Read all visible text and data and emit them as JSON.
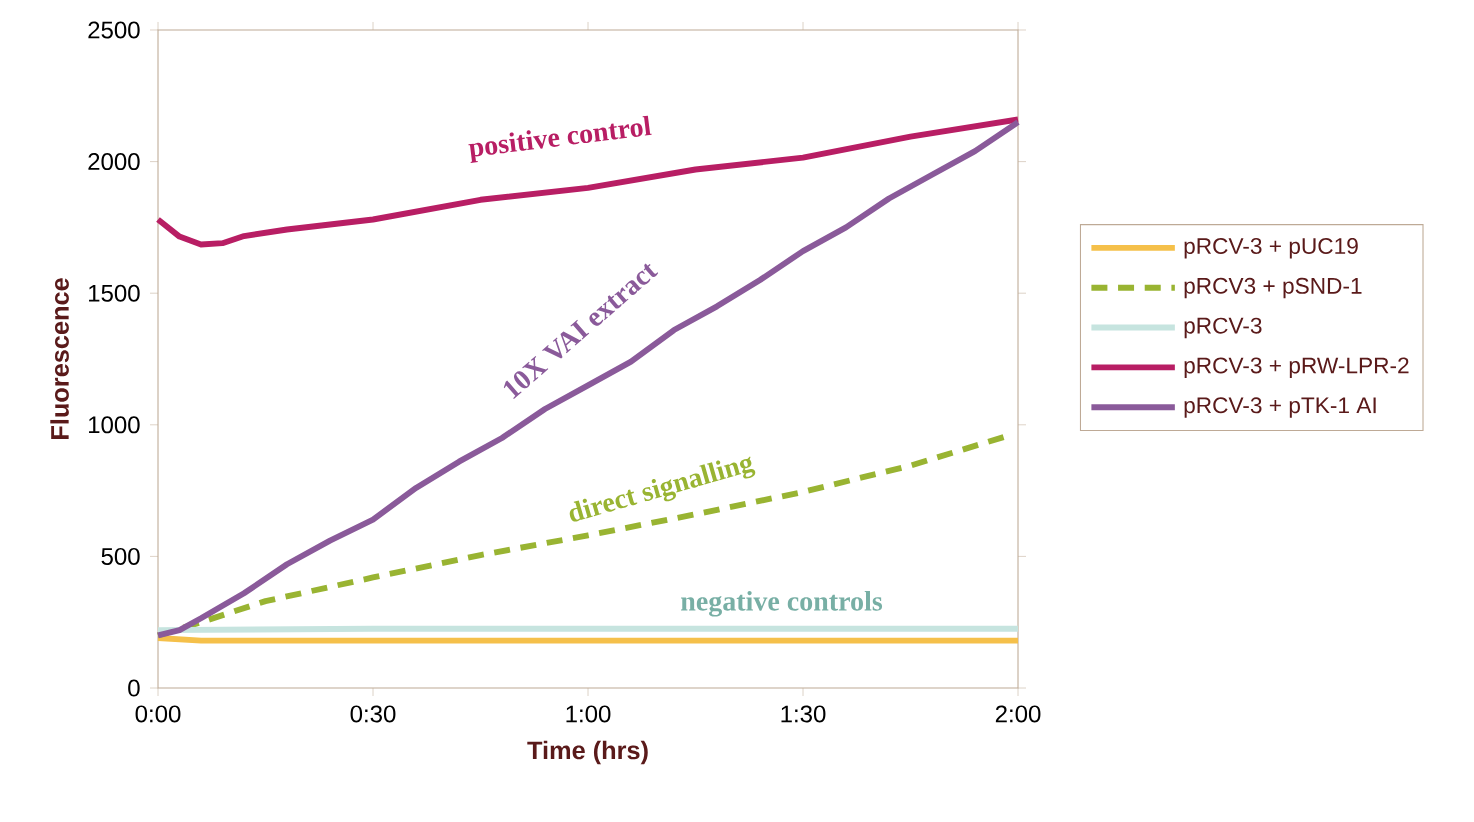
{
  "chart_data": {
    "type": "line",
    "xlabel": "Time (hrs)",
    "ylabel": "Fluorescence",
    "xlim": [
      0,
      2
    ],
    "ylim": [
      0,
      2500
    ],
    "xticks": [
      {
        "value": 0,
        "label": "0:00"
      },
      {
        "value": 0.5,
        "label": "0:30"
      },
      {
        "value": 1,
        "label": "1:00"
      },
      {
        "value": 1.5,
        "label": "1:30"
      },
      {
        "value": 2,
        "label": "2:00"
      }
    ],
    "yticks": [
      0,
      500,
      1000,
      1500,
      2000,
      2500
    ],
    "legend": "right",
    "grid": false,
    "marker": "none",
    "series": [
      {
        "name": "pRCV-3 + pUC19",
        "color": "#f5c04a",
        "line_style": "solid",
        "x": [
          0,
          0.1,
          0.25,
          0.5,
          0.75,
          1,
          1.25,
          1.5,
          1.75,
          2
        ],
        "values": [
          190,
          180,
          180,
          180,
          180,
          180,
          180,
          180,
          180,
          180
        ]
      },
      {
        "name": "pRCV3 + pSND-1",
        "color": "#99b432",
        "line_style": "dashed",
        "x": [
          0,
          0.1,
          0.25,
          0.5,
          0.75,
          1,
          1.25,
          1.5,
          1.75,
          1.98
        ],
        "values": [
          200,
          250,
          330,
          420,
          505,
          580,
          660,
          745,
          845,
          960
        ]
      },
      {
        "name": "pRCV-3",
        "color": "#c6e4df",
        "line_style": "solid",
        "x": [
          0,
          0.5,
          1,
          1.5,
          2
        ],
        "values": [
          220,
          225,
          225,
          225,
          225
        ]
      },
      {
        "name": "pRCV-3 + pRW-LPR-2",
        "color": "#b81e64",
        "line_style": "solid",
        "x": [
          0,
          0.05,
          0.1,
          0.15,
          0.2,
          0.3,
          0.5,
          0.75,
          1,
          1.25,
          1.5,
          1.75,
          2
        ],
        "values": [
          1780,
          1715,
          1685,
          1690,
          1717,
          1742,
          1780,
          1855,
          1900,
          1970,
          2015,
          2095,
          2160
        ]
      },
      {
        "name": "pRCV-3 + pTK-1 AI",
        "color": "#8a5a9a",
        "line_style": "solid",
        "x": [
          0,
          0.05,
          0.1,
          0.2,
          0.3,
          0.4,
          0.5,
          0.6,
          0.7,
          0.8,
          0.9,
          1,
          1.1,
          1.2,
          1.3,
          1.4,
          1.5,
          1.6,
          1.7,
          1.8,
          1.9,
          2
        ],
        "values": [
          200,
          220,
          265,
          360,
          470,
          560,
          640,
          760,
          860,
          950,
          1060,
          1150,
          1240,
          1360,
          1450,
          1550,
          1660,
          1750,
          1860,
          1950,
          2040,
          2150
        ]
      }
    ],
    "annotations": [
      "positive control",
      "10X VAI extract",
      "direct signalling",
      "negative controls"
    ]
  }
}
